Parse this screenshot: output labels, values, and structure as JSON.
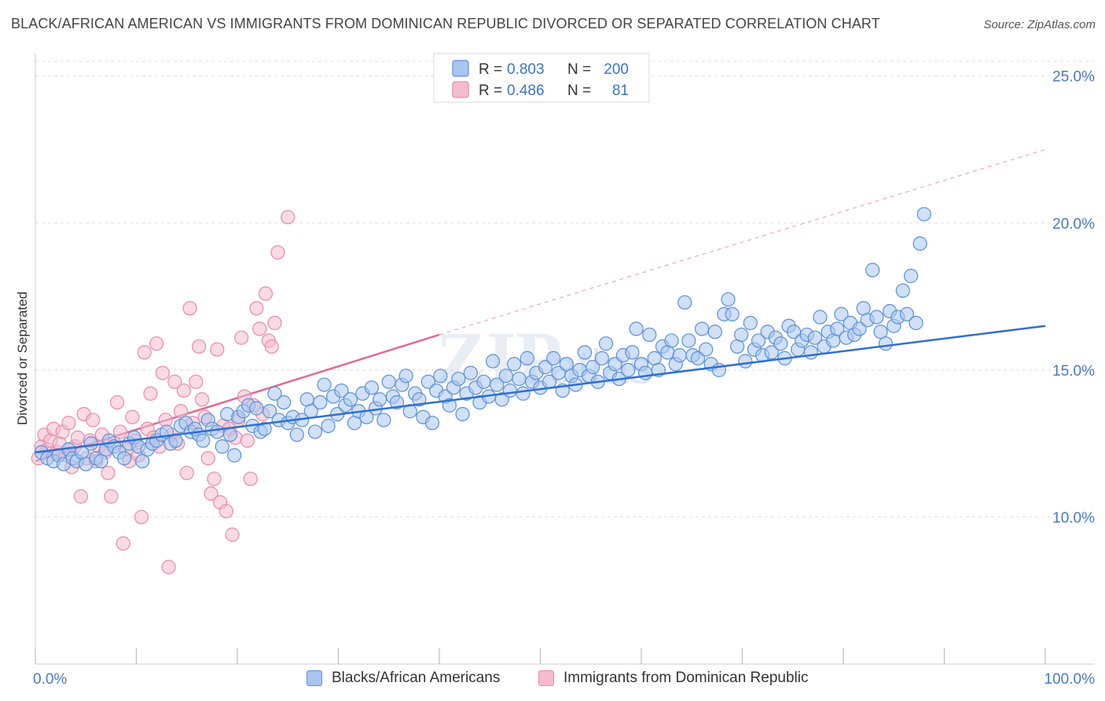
{
  "header": {
    "title": "BLACK/AFRICAN AMERICAN VS IMMIGRANTS FROM DOMINICAN REPUBLIC DIVORCED OR SEPARATED CORRELATION CHART",
    "source": "Source: ZipAtlas.com"
  },
  "legend_box": {
    "rows": [
      {
        "r_label": "R =",
        "r_value": "0.803",
        "n_label": "N =",
        "n_value": "200"
      },
      {
        "r_label": "R =",
        "r_value": "0.486",
        "n_label": "N =",
        "n_value": "81"
      }
    ]
  },
  "bottom_legend": {
    "items": [
      {
        "label": "Blacks/African Americans"
      },
      {
        "label": "Immigrants from Dominican Republic"
      }
    ]
  },
  "chart_data": {
    "type": "scatter",
    "title": "BLACK/AFRICAN AMERICAN VS IMMIGRANTS FROM DOMINICAN REPUBLIC DIVORCED OR SEPARATED CORRELATION CHART",
    "xlabel": "",
    "ylabel": "Divorced or Separated",
    "xlim": [
      0,
      100
    ],
    "ylim": [
      5,
      25.5
    ],
    "x_tick_labels": [
      "0.0%",
      "100.0%"
    ],
    "y_tick_labels": [
      "10.0%",
      "15.0%",
      "20.0%",
      "25.0%"
    ],
    "y_ticks": [
      10,
      15,
      20,
      25
    ],
    "grid": true,
    "legend_position": "bottom",
    "colors": {
      "blue_fill": "#a9c6f0",
      "blue_stroke": "#5b8fd6",
      "blue_line": "#2f6fd0",
      "pink_fill": "#f6bccd",
      "pink_stroke": "#e88aa8",
      "pink_line": "#e06a92",
      "tick_label": "#4a78c8",
      "grid": "#dddddd"
    },
    "series": [
      {
        "name": "Blacks/African Americans",
        "r": 0.803,
        "n": 200,
        "trend": {
          "x": [
            0,
            100
          ],
          "y": [
            12.2,
            16.5
          ]
        },
        "points": [
          [
            0.6,
            12.2
          ],
          [
            1.2,
            12.0
          ],
          [
            1.8,
            11.9
          ],
          [
            2.3,
            12.1
          ],
          [
            2.8,
            11.8
          ],
          [
            3.3,
            12.3
          ],
          [
            3.7,
            12.0
          ],
          [
            4.1,
            11.9
          ],
          [
            4.6,
            12.2
          ],
          [
            5.0,
            11.8
          ],
          [
            5.5,
            12.5
          ],
          [
            6.0,
            12.0
          ],
          [
            6.5,
            11.9
          ],
          [
            7.0,
            12.3
          ],
          [
            7.3,
            12.6
          ],
          [
            7.8,
            12.4
          ],
          [
            8.3,
            12.2
          ],
          [
            8.8,
            12.0
          ],
          [
            9.3,
            12.5
          ],
          [
            9.8,
            12.7
          ],
          [
            10.2,
            12.4
          ],
          [
            10.6,
            11.9
          ],
          [
            11.1,
            12.3
          ],
          [
            11.6,
            12.5
          ],
          [
            12.0,
            12.6
          ],
          [
            12.5,
            12.8
          ],
          [
            13.0,
            12.9
          ],
          [
            13.4,
            12.5
          ],
          [
            13.9,
            12.6
          ],
          [
            14.4,
            13.1
          ],
          [
            14.9,
            13.2
          ],
          [
            15.4,
            12.9
          ],
          [
            15.8,
            13.0
          ],
          [
            16.2,
            12.8
          ],
          [
            16.6,
            12.6
          ],
          [
            17.1,
            13.3
          ],
          [
            17.5,
            13.0
          ],
          [
            18.0,
            12.9
          ],
          [
            18.5,
            12.4
          ],
          [
            19.0,
            13.5
          ],
          [
            19.3,
            12.8
          ],
          [
            19.7,
            12.1
          ],
          [
            20.1,
            13.4
          ],
          [
            20.6,
            13.6
          ],
          [
            21.1,
            13.8
          ],
          [
            21.5,
            13.1
          ],
          [
            21.9,
            13.7
          ],
          [
            22.3,
            12.9
          ],
          [
            22.7,
            13.0
          ],
          [
            23.2,
            13.6
          ],
          [
            23.7,
            14.2
          ],
          [
            24.1,
            13.3
          ],
          [
            24.6,
            13.9
          ],
          [
            25.0,
            13.2
          ],
          [
            25.5,
            13.4
          ],
          [
            25.9,
            12.8
          ],
          [
            26.4,
            13.3
          ],
          [
            26.9,
            14.0
          ],
          [
            27.3,
            13.6
          ],
          [
            27.7,
            12.9
          ],
          [
            28.2,
            13.9
          ],
          [
            28.6,
            14.5
          ],
          [
            29.0,
            13.1
          ],
          [
            29.5,
            14.1
          ],
          [
            29.9,
            13.5
          ],
          [
            30.3,
            14.3
          ],
          [
            30.7,
            13.8
          ],
          [
            31.2,
            14.0
          ],
          [
            31.6,
            13.2
          ],
          [
            32.0,
            13.6
          ],
          [
            32.4,
            14.2
          ],
          [
            32.8,
            13.4
          ],
          [
            33.3,
            14.4
          ],
          [
            33.7,
            13.7
          ],
          [
            34.1,
            14.0
          ],
          [
            34.5,
            13.3
          ],
          [
            35.0,
            14.6
          ],
          [
            35.4,
            14.1
          ],
          [
            35.8,
            13.9
          ],
          [
            36.3,
            14.5
          ],
          [
            36.7,
            14.8
          ],
          [
            37.1,
            13.6
          ],
          [
            37.6,
            14.2
          ],
          [
            38.0,
            14.0
          ],
          [
            38.4,
            13.4
          ],
          [
            38.9,
            14.6
          ],
          [
            39.3,
            13.2
          ],
          [
            39.7,
            14.3
          ],
          [
            40.1,
            14.8
          ],
          [
            40.6,
            14.1
          ],
          [
            41.0,
            13.8
          ],
          [
            41.4,
            14.4
          ],
          [
            41.9,
            14.7
          ],
          [
            42.3,
            13.5
          ],
          [
            42.7,
            14.2
          ],
          [
            43.1,
            14.9
          ],
          [
            43.6,
            14.4
          ],
          [
            44.0,
            13.9
          ],
          [
            44.4,
            14.6
          ],
          [
            44.9,
            14.1
          ],
          [
            45.3,
            15.3
          ],
          [
            45.7,
            14.5
          ],
          [
            46.2,
            14.0
          ],
          [
            46.6,
            14.8
          ],
          [
            47.0,
            14.3
          ],
          [
            47.4,
            15.2
          ],
          [
            47.9,
            14.7
          ],
          [
            48.3,
            14.2
          ],
          [
            48.7,
            15.4
          ],
          [
            49.2,
            14.6
          ],
          [
            49.6,
            14.9
          ],
          [
            50.0,
            14.4
          ],
          [
            50.5,
            15.1
          ],
          [
            50.9,
            14.6
          ],
          [
            51.3,
            15.4
          ],
          [
            51.8,
            14.9
          ],
          [
            52.2,
            14.3
          ],
          [
            52.6,
            15.2
          ],
          [
            53.1,
            14.8
          ],
          [
            53.5,
            14.5
          ],
          [
            53.9,
            15.0
          ],
          [
            54.4,
            15.6
          ],
          [
            54.8,
            14.8
          ],
          [
            55.2,
            15.1
          ],
          [
            55.7,
            14.6
          ],
          [
            56.1,
            15.4
          ],
          [
            56.5,
            15.9
          ],
          [
            56.9,
            14.9
          ],
          [
            57.4,
            15.2
          ],
          [
            57.8,
            14.7
          ],
          [
            58.2,
            15.5
          ],
          [
            58.7,
            15.0
          ],
          [
            59.1,
            15.6
          ],
          [
            59.5,
            16.4
          ],
          [
            60.0,
            15.2
          ],
          [
            60.4,
            14.9
          ],
          [
            60.8,
            16.2
          ],
          [
            61.3,
            15.4
          ],
          [
            61.7,
            15.0
          ],
          [
            62.1,
            15.8
          ],
          [
            62.6,
            15.6
          ],
          [
            63.0,
            16.0
          ],
          [
            63.4,
            15.2
          ],
          [
            63.8,
            15.5
          ],
          [
            64.3,
            17.3
          ],
          [
            64.7,
            16.0
          ],
          [
            65.1,
            15.5
          ],
          [
            65.6,
            15.4
          ],
          [
            66.0,
            16.4
          ],
          [
            66.4,
            15.7
          ],
          [
            66.9,
            15.2
          ],
          [
            67.3,
            16.3
          ],
          [
            67.7,
            15.0
          ],
          [
            68.2,
            16.9
          ],
          [
            68.6,
            17.4
          ],
          [
            69.0,
            16.9
          ],
          [
            69.5,
            15.8
          ],
          [
            69.9,
            16.2
          ],
          [
            70.3,
            15.3
          ],
          [
            70.8,
            16.6
          ],
          [
            71.2,
            15.7
          ],
          [
            71.6,
            16.0
          ],
          [
            72.0,
            15.5
          ],
          [
            72.5,
            16.3
          ],
          [
            72.9,
            15.6
          ],
          [
            73.3,
            16.1
          ],
          [
            73.8,
            15.9
          ],
          [
            74.2,
            15.4
          ],
          [
            74.6,
            16.5
          ],
          [
            75.1,
            16.3
          ],
          [
            75.5,
            15.7
          ],
          [
            75.9,
            16.0
          ],
          [
            76.4,
            16.2
          ],
          [
            76.8,
            15.6
          ],
          [
            77.2,
            16.1
          ],
          [
            77.7,
            16.8
          ],
          [
            78.1,
            15.8
          ],
          [
            78.5,
            16.3
          ],
          [
            79.0,
            16.0
          ],
          [
            79.4,
            16.4
          ],
          [
            79.8,
            16.9
          ],
          [
            80.3,
            16.1
          ],
          [
            80.7,
            16.6
          ],
          [
            81.1,
            16.2
          ],
          [
            81.6,
            16.4
          ],
          [
            82.0,
            17.1
          ],
          [
            82.4,
            16.7
          ],
          [
            82.9,
            18.4
          ],
          [
            83.3,
            16.8
          ],
          [
            83.7,
            16.3
          ],
          [
            84.2,
            15.9
          ],
          [
            84.6,
            17.0
          ],
          [
            85.0,
            16.5
          ],
          [
            85.4,
            16.8
          ],
          [
            85.9,
            17.7
          ],
          [
            86.3,
            16.9
          ],
          [
            86.7,
            18.2
          ],
          [
            87.2,
            16.6
          ],
          [
            87.6,
            19.3
          ],
          [
            88.0,
            20.3
          ]
        ]
      },
      {
        "name": "Immigrants from Dominican Republic",
        "r": 0.486,
        "n": 81,
        "trend": {
          "x": [
            0,
            40
          ],
          "y": [
            11.9,
            16.2
          ]
        },
        "trend_extension": {
          "x": [
            40,
            100
          ],
          "y": [
            16.2,
            22.5
          ]
        },
        "points": [
          [
            0.3,
            12.0
          ],
          [
            0.6,
            12.4
          ],
          [
            0.9,
            12.8
          ],
          [
            1.2,
            12.3
          ],
          [
            1.5,
            12.6
          ],
          [
            1.8,
            13.0
          ],
          [
            2.1,
            12.2
          ],
          [
            2.4,
            12.5
          ],
          [
            2.7,
            12.9
          ],
          [
            3.0,
            12.1
          ],
          [
            3.3,
            13.2
          ],
          [
            3.6,
            11.7
          ],
          [
            3.9,
            12.4
          ],
          [
            4.2,
            12.7
          ],
          [
            4.5,
            10.7
          ],
          [
            4.8,
            13.5
          ],
          [
            5.1,
            12.0
          ],
          [
            5.4,
            12.6
          ],
          [
            5.7,
            13.3
          ],
          [
            6.0,
            11.9
          ],
          [
            6.3,
            12.4
          ],
          [
            6.6,
            12.8
          ],
          [
            6.9,
            12.2
          ],
          [
            7.2,
            11.5
          ],
          [
            7.5,
            10.7
          ],
          [
            7.8,
            12.5
          ],
          [
            8.1,
            13.9
          ],
          [
            8.4,
            12.9
          ],
          [
            8.7,
            9.1
          ],
          [
            9.0,
            12.3
          ],
          [
            9.3,
            11.9
          ],
          [
            9.6,
            13.4
          ],
          [
            9.9,
            12.6
          ],
          [
            10.2,
            12.1
          ],
          [
            10.5,
            10.0
          ],
          [
            10.8,
            15.6
          ],
          [
            11.1,
            13.0
          ],
          [
            11.4,
            14.2
          ],
          [
            11.7,
            12.7
          ],
          [
            12.0,
            15.9
          ],
          [
            12.3,
            12.4
          ],
          [
            12.6,
            14.9
          ],
          [
            12.9,
            13.3
          ],
          [
            13.2,
            8.3
          ],
          [
            13.5,
            12.8
          ],
          [
            13.8,
            14.6
          ],
          [
            14.1,
            12.5
          ],
          [
            14.4,
            13.6
          ],
          [
            14.7,
            14.3
          ],
          [
            15.0,
            11.5
          ],
          [
            15.3,
            17.1
          ],
          [
            15.6,
            13.2
          ],
          [
            15.9,
            14.6
          ],
          [
            16.2,
            15.8
          ],
          [
            16.5,
            14.0
          ],
          [
            16.8,
            13.4
          ],
          [
            17.1,
            12.0
          ],
          [
            17.4,
            10.8
          ],
          [
            17.7,
            11.3
          ],
          [
            18.0,
            15.7
          ],
          [
            18.3,
            10.5
          ],
          [
            18.6,
            13.1
          ],
          [
            18.9,
            10.2
          ],
          [
            19.2,
            13.0
          ],
          [
            19.5,
            9.4
          ],
          [
            19.8,
            12.7
          ],
          [
            20.1,
            13.3
          ],
          [
            20.4,
            16.1
          ],
          [
            20.7,
            14.1
          ],
          [
            21.0,
            12.6
          ],
          [
            21.3,
            11.3
          ],
          [
            21.6,
            13.8
          ],
          [
            21.9,
            17.1
          ],
          [
            22.2,
            16.4
          ],
          [
            22.5,
            13.5
          ],
          [
            22.8,
            17.6
          ],
          [
            23.1,
            16.0
          ],
          [
            23.4,
            15.8
          ],
          [
            23.7,
            16.6
          ],
          [
            24.0,
            19.0
          ],
          [
            25.0,
            20.2
          ]
        ]
      }
    ]
  }
}
